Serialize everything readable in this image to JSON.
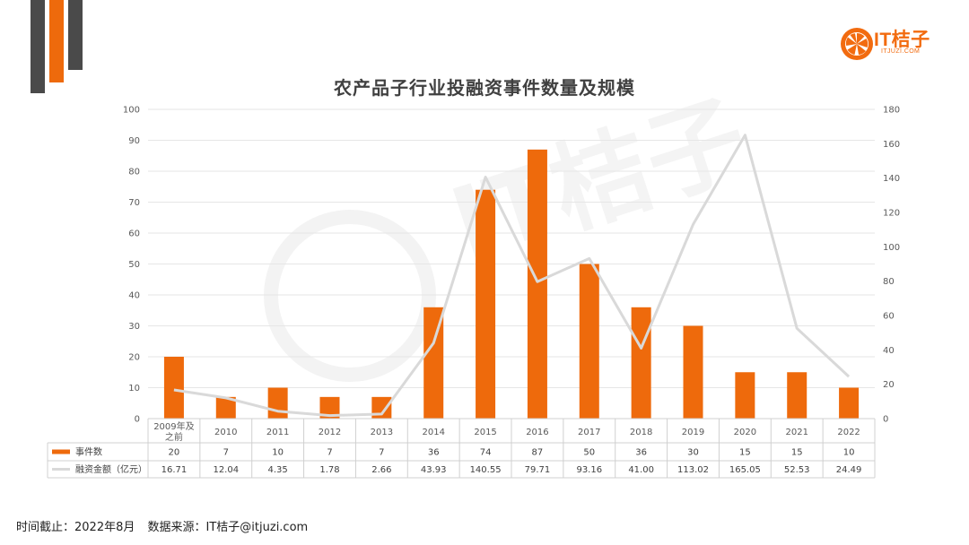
{
  "title": "农产品子行业投融资事件数量及规模",
  "brand": {
    "name": "IT桔子",
    "domain": "ITJUZI.COM",
    "color": "#f26b0f"
  },
  "colors": {
    "bar": "#ee6a0c",
    "line": "#d9d9d9",
    "deco_dark": "#4a4a4a",
    "deco_orange": "#ee6a0c"
  },
  "footnote": {
    "cutoff_label": "时间截止：",
    "cutoff_value": "2022年8月",
    "source_label": "数据来源：",
    "source_value": "IT桔子@itjuzi.com"
  },
  "chart_data": {
    "type": "bar",
    "categories": [
      "2009年及之前",
      "2010",
      "2011",
      "2012",
      "2013",
      "2014",
      "2015",
      "2016",
      "2017",
      "2018",
      "2019",
      "2020",
      "2021",
      "2022"
    ],
    "series": [
      {
        "name": "事件数",
        "type": "bar",
        "axis": "left",
        "values": [
          20,
          7,
          10,
          7,
          7,
          36,
          74,
          87,
          50,
          36,
          30,
          15,
          15,
          10
        ],
        "labels": [
          "20",
          "7",
          "10",
          "7",
          "7",
          "36",
          "74",
          "87",
          "50",
          "36",
          "30",
          "15",
          "15",
          "10"
        ]
      },
      {
        "name": "融资金额（亿元）",
        "type": "line",
        "axis": "right",
        "values": [
          16.71,
          12.04,
          4.35,
          1.78,
          2.66,
          43.93,
          140.55,
          79.71,
          93.16,
          41.0,
          113.02,
          165.05,
          52.53,
          24.49
        ],
        "labels": [
          "16.71",
          "12.04",
          "4.35",
          "1.78",
          "2.66",
          "43.93",
          "140.55",
          "79.71",
          "93.16",
          "41.00",
          "113.02",
          "165.05",
          "52.53",
          "24.49"
        ]
      }
    ],
    "ylim_left": [
      0,
      100
    ],
    "ylim_right": [
      0,
      180
    ],
    "yticks_left": [
      "0",
      "10",
      "20",
      "30",
      "40",
      "50",
      "60",
      "70",
      "80",
      "90",
      "100"
    ],
    "yticks_right": [
      "0",
      "20",
      "40",
      "60",
      "80",
      "100",
      "120",
      "140",
      "160",
      "180"
    ],
    "grid": true,
    "legend": "data-table"
  }
}
